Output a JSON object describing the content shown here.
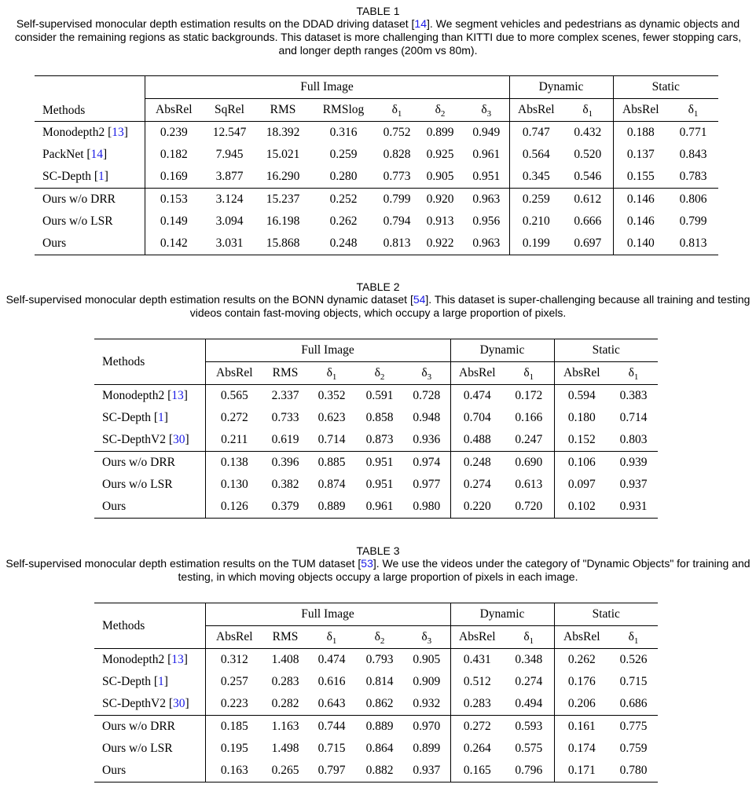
{
  "tables": [
    {
      "number": "TABLE 1",
      "caption": [
        {
          "t": "Self-supervised monocular depth estimation results on the DDAD driving dataset ["
        },
        {
          "t": "14",
          "c": 1
        },
        {
          "t": "]. We segment vehicles and pedestrians as dynamic objects and consider the remaining regions as static backgrounds. This dataset is more challenging than KITTI due to more complex scenes, fewer stopping cars, and longer depth ranges (200m vs 80m)."
        }
      ],
      "methods_label": "Methods",
      "groups": [
        {
          "label": "Full Image",
          "span": 7
        },
        {
          "label": "Dynamic",
          "span": 2
        },
        {
          "label": "Static",
          "span": 2
        }
      ],
      "columns": [
        {
          "t": "AbsRel"
        },
        {
          "t": "SqRel"
        },
        {
          "t": "RMS"
        },
        {
          "t": "RMSlog"
        },
        {
          "t": "δ",
          "s": "1"
        },
        {
          "t": "δ",
          "s": "2"
        },
        {
          "t": "δ",
          "s": "3"
        },
        {
          "t": "AbsRel"
        },
        {
          "t": "δ",
          "s": "1"
        },
        {
          "t": "AbsRel"
        },
        {
          "t": "δ",
          "s": "1"
        }
      ],
      "rows": [
        {
          "method": [
            {
              "t": "Monodepth2 ["
            },
            {
              "t": "13",
              "c": 1
            },
            {
              "t": "]"
            }
          ],
          "cells": [
            {
              "v": "0.239"
            },
            {
              "v": "12.547"
            },
            {
              "v": "18.392"
            },
            {
              "v": "0.316"
            },
            {
              "v": "0.752"
            },
            {
              "v": "0.899"
            },
            {
              "v": "0.949"
            },
            {
              "v": "0.747"
            },
            {
              "v": "0.432"
            },
            {
              "v": "0.188"
            },
            {
              "v": "0.771"
            }
          ]
        },
        {
          "method": [
            {
              "t": "PackNet ["
            },
            {
              "t": "14",
              "c": 1
            },
            {
              "t": "]"
            }
          ],
          "cells": [
            {
              "v": "0.182"
            },
            {
              "v": "7.945"
            },
            {
              "v": "15.021",
              "b": 1
            },
            {
              "v": "0.259",
              "b": 1
            },
            {
              "v": "0.828",
              "b": 1
            },
            {
              "v": "0.925",
              "b": 1
            },
            {
              "v": "0.961",
              "b": 1
            },
            {
              "v": "0.564"
            },
            {
              "v": "0.520"
            },
            {
              "v": "0.137",
              "b": 1
            },
            {
              "v": "0.843",
              "b": 1
            }
          ]
        },
        {
          "method": [
            {
              "t": "SC-Depth ["
            },
            {
              "t": "1",
              "c": 1
            },
            {
              "t": "]"
            }
          ],
          "cells": [
            {
              "v": "0.169",
              "b": 1
            },
            {
              "v": "3.877",
              "b": 1
            },
            {
              "v": "16.290"
            },
            {
              "v": "0.280"
            },
            {
              "v": "0.773"
            },
            {
              "v": "0.905"
            },
            {
              "v": "0.951"
            },
            {
              "v": "0.345",
              "b": 1
            },
            {
              "v": "0.546",
              "b": 1
            },
            {
              "v": "0.155"
            },
            {
              "v": "0.783"
            }
          ]
        },
        {
          "method": [
            {
              "t": "Ours w/o DRR"
            }
          ],
          "mid": 1,
          "cells": [
            {
              "v": "0.153"
            },
            {
              "v": "3.124"
            },
            {
              "v": "15.237",
              "b": 1
            },
            {
              "v": "0.252"
            },
            {
              "v": "0.799"
            },
            {
              "v": "0.920"
            },
            {
              "v": "0.963"
            },
            {
              "v": "0.259"
            },
            {
              "v": "0.612"
            },
            {
              "v": "0.146"
            },
            {
              "v": "0.806"
            }
          ]
        },
        {
          "method": [
            {
              "t": "Ours w/o LSR"
            }
          ],
          "cells": [
            {
              "v": "0.149"
            },
            {
              "v": "3.094"
            },
            {
              "v": "16.198"
            },
            {
              "v": "0.262"
            },
            {
              "v": "0.794"
            },
            {
              "v": "0.913"
            },
            {
              "v": "0.956"
            },
            {
              "v": "0.210"
            },
            {
              "v": "0.666"
            },
            {
              "v": "0.146"
            },
            {
              "v": "0.799"
            }
          ]
        },
        {
          "method": [
            {
              "t": "Ours"
            }
          ],
          "cells": [
            {
              "v": "0.142",
              "b": 1
            },
            {
              "v": "3.031",
              "b": 1
            },
            {
              "v": "15.868"
            },
            {
              "v": "0.248",
              "b": 1
            },
            {
              "v": "0.813",
              "b": 1
            },
            {
              "v": "0.922",
              "b": 1
            },
            {
              "v": "0.963",
              "b": 1
            },
            {
              "v": "0.199",
              "b": 1
            },
            {
              "v": "0.697",
              "b": 1
            },
            {
              "v": "0.140",
              "b": 1
            },
            {
              "v": "0.813",
              "b": 1
            }
          ]
        }
      ]
    },
    {
      "number": "TABLE 2",
      "caption": [
        {
          "t": "Self-supervised monocular depth estimation results on the BONN dynamic dataset ["
        },
        {
          "t": "54",
          "c": 1
        },
        {
          "t": "]. This dataset is super-challenging because all training and testing videos contain fast-moving objects, which occupy a large proportion of pixels."
        }
      ],
      "methods_label": "Methods",
      "groups": [
        {
          "label": "Full Image",
          "span": 5
        },
        {
          "label": "Dynamic",
          "span": 2
        },
        {
          "label": "Static",
          "span": 2
        }
      ],
      "columns": [
        {
          "t": "AbsRel"
        },
        {
          "t": "RMS"
        },
        {
          "t": "δ",
          "s": "1"
        },
        {
          "t": "δ",
          "s": "2"
        },
        {
          "t": "δ",
          "s": "3"
        },
        {
          "t": "AbsRel"
        },
        {
          "t": "δ",
          "s": "1"
        },
        {
          "t": "AbsRel"
        },
        {
          "t": "δ",
          "s": "1"
        }
      ],
      "rows": [
        {
          "method": [
            {
              "t": "Monodepth2 ["
            },
            {
              "t": "13",
              "c": 1
            },
            {
              "t": "]"
            }
          ],
          "cells": [
            {
              "v": "0.565"
            },
            {
              "v": "2.337"
            },
            {
              "v": "0.352"
            },
            {
              "v": "0.591"
            },
            {
              "v": "0.728"
            },
            {
              "v": "0.474",
              "b": 1
            },
            {
              "v": "0.172"
            },
            {
              "v": "0.594"
            },
            {
              "v": "0.383"
            }
          ]
        },
        {
          "method": [
            {
              "t": "SC-Depth ["
            },
            {
              "t": "1",
              "c": 1
            },
            {
              "t": "]"
            }
          ],
          "cells": [
            {
              "v": "0.272"
            },
            {
              "v": "0.733"
            },
            {
              "v": "0.623"
            },
            {
              "v": "0.858"
            },
            {
              "v": "0.948"
            },
            {
              "v": "0.704"
            },
            {
              "v": "0.166"
            },
            {
              "v": "0.180"
            },
            {
              "v": "0.714"
            }
          ]
        },
        {
          "method": [
            {
              "t": "SC-DepthV2 ["
            },
            {
              "t": "30",
              "c": 1
            },
            {
              "t": "]"
            }
          ],
          "cells": [
            {
              "v": "0.211",
              "b": 1
            },
            {
              "v": "0.619",
              "b": 1
            },
            {
              "v": "0.714",
              "b": 1
            },
            {
              "v": "0.873",
              "b": 1
            },
            {
              "v": "0.936",
              "b": 1
            },
            {
              "v": "0.488"
            },
            {
              "v": "0.247",
              "b": 1
            },
            {
              "v": "0.152",
              "b": 1
            },
            {
              "v": "0.803",
              "b": 1
            }
          ]
        },
        {
          "method": [
            {
              "t": "Ours w/o DRR"
            }
          ],
          "mid": 1,
          "cells": [
            {
              "v": "0.138"
            },
            {
              "v": "0.396"
            },
            {
              "v": "0.885"
            },
            {
              "v": "0.951"
            },
            {
              "v": "0.974"
            },
            {
              "v": "0.248"
            },
            {
              "v": "0.690"
            },
            {
              "v": "0.106"
            },
            {
              "v": "0.939",
              "b": 1
            }
          ]
        },
        {
          "method": [
            {
              "t": "Ours w/o LSR"
            }
          ],
          "cells": [
            {
              "v": "0.130"
            },
            {
              "v": "0.382"
            },
            {
              "v": "0.874"
            },
            {
              "v": "0.951"
            },
            {
              "v": "0.977"
            },
            {
              "v": "0.274"
            },
            {
              "v": "0.613"
            },
            {
              "v": "0.097"
            },
            {
              "v": "0.937"
            }
          ]
        },
        {
          "method": [
            {
              "t": "Ours"
            }
          ],
          "cells": [
            {
              "v": "0.126",
              "b": 1
            },
            {
              "v": "0.379",
              "b": 1
            },
            {
              "v": "0.889",
              "b": 1
            },
            {
              "v": "0.961",
              "b": 1
            },
            {
              "v": "0.980",
              "b": 1
            },
            {
              "v": "0.220",
              "b": 1
            },
            {
              "v": "0.720",
              "b": 1
            },
            {
              "v": "0.102",
              "b": 1
            },
            {
              "v": "0.931"
            }
          ]
        }
      ]
    },
    {
      "number": "TABLE 3",
      "caption": [
        {
          "t": "Self-supervised monocular depth estimation results on the TUM dataset ["
        },
        {
          "t": "53",
          "c": 1
        },
        {
          "t": "]. We use the videos under the category of \"Dynamic Objects\" for training and testing, in which moving objects occupy a large proportion of pixels in each image."
        }
      ],
      "methods_label": "Methods",
      "groups": [
        {
          "label": "Full Image",
          "span": 5
        },
        {
          "label": "Dynamic",
          "span": 2
        },
        {
          "label": "Static",
          "span": 2
        }
      ],
      "columns": [
        {
          "t": "AbsRel"
        },
        {
          "t": "RMS"
        },
        {
          "t": "δ",
          "s": "1"
        },
        {
          "t": "δ",
          "s": "2"
        },
        {
          "t": "δ",
          "s": "3"
        },
        {
          "t": "AbsRel"
        },
        {
          "t": "δ",
          "s": "1"
        },
        {
          "t": "AbsRel"
        },
        {
          "t": "δ",
          "s": "1"
        }
      ],
      "rows": [
        {
          "method": [
            {
              "t": "Monodepth2 ["
            },
            {
              "t": "13",
              "c": 1
            },
            {
              "t": "]"
            }
          ],
          "cells": [
            {
              "v": "0.312"
            },
            {
              "v": "1.408"
            },
            {
              "v": "0.474"
            },
            {
              "v": "0.793"
            },
            {
              "v": "0.905"
            },
            {
              "v": "0.431"
            },
            {
              "v": "0.348"
            },
            {
              "v": "0.262"
            },
            {
              "v": "0.526"
            }
          ]
        },
        {
          "method": [
            {
              "t": "SC-Depth ["
            },
            {
              "t": "1",
              "c": 1
            },
            {
              "t": "]"
            }
          ],
          "cells": [
            {
              "v": "0.257"
            },
            {
              "v": "0.283"
            },
            {
              "v": "0.616"
            },
            {
              "v": "0.814"
            },
            {
              "v": "0.909"
            },
            {
              "v": "0.512"
            },
            {
              "v": "0.274"
            },
            {
              "v": "0.176",
              "b": 1
            },
            {
              "v": "0.715",
              "b": 1
            }
          ]
        },
        {
          "method": [
            {
              "t": "SC-DepthV2 ["
            },
            {
              "t": "30",
              "c": 1
            },
            {
              "t": "]"
            }
          ],
          "cells": [
            {
              "v": "0.223",
              "b": 1
            },
            {
              "v": "0.282",
              "b": 1
            },
            {
              "v": "0.643",
              "b": 1
            },
            {
              "v": "0.862",
              "b": 1
            },
            {
              "v": "0.932",
              "b": 1
            },
            {
              "v": "0.283",
              "b": 1
            },
            {
              "v": "0.494",
              "b": 1
            },
            {
              "v": "0.206"
            },
            {
              "v": "0.686"
            }
          ]
        },
        {
          "method": [
            {
              "t": "Ours w/o DRR"
            }
          ],
          "mid": 1,
          "cells": [
            {
              "v": "0.185"
            },
            {
              "v": "1.163"
            },
            {
              "v": "0.744"
            },
            {
              "v": "0.889",
              "b": 1
            },
            {
              "v": "0.970",
              "b": 1
            },
            {
              "v": "0.272"
            },
            {
              "v": "0.593"
            },
            {
              "v": "0.161",
              "b": 1
            },
            {
              "v": "0.775"
            }
          ]
        },
        {
          "method": [
            {
              "t": "Ours w/o LSR"
            }
          ],
          "cells": [
            {
              "v": "0.195"
            },
            {
              "v": "1.498"
            },
            {
              "v": "0.715"
            },
            {
              "v": "0.864"
            },
            {
              "v": "0.899"
            },
            {
              "v": "0.264"
            },
            {
              "v": "0.575"
            },
            {
              "v": "0.174"
            },
            {
              "v": "0.759"
            }
          ]
        },
        {
          "method": [
            {
              "t": "Ours"
            }
          ],
          "cells": [
            {
              "v": "0.163",
              "b": 1
            },
            {
              "v": "0.265",
              "b": 1
            },
            {
              "v": "0.797",
              "b": 1
            },
            {
              "v": "0.882"
            },
            {
              "v": "0.937"
            },
            {
              "v": "0.165",
              "b": 1
            },
            {
              "v": "0.796",
              "b": 1
            },
            {
              "v": "0.171"
            },
            {
              "v": "0.780",
              "b": 1
            }
          ]
        }
      ]
    }
  ],
  "colors": {
    "citation": "#1a1ae6",
    "text": "#000000",
    "background": "#ffffff"
  }
}
